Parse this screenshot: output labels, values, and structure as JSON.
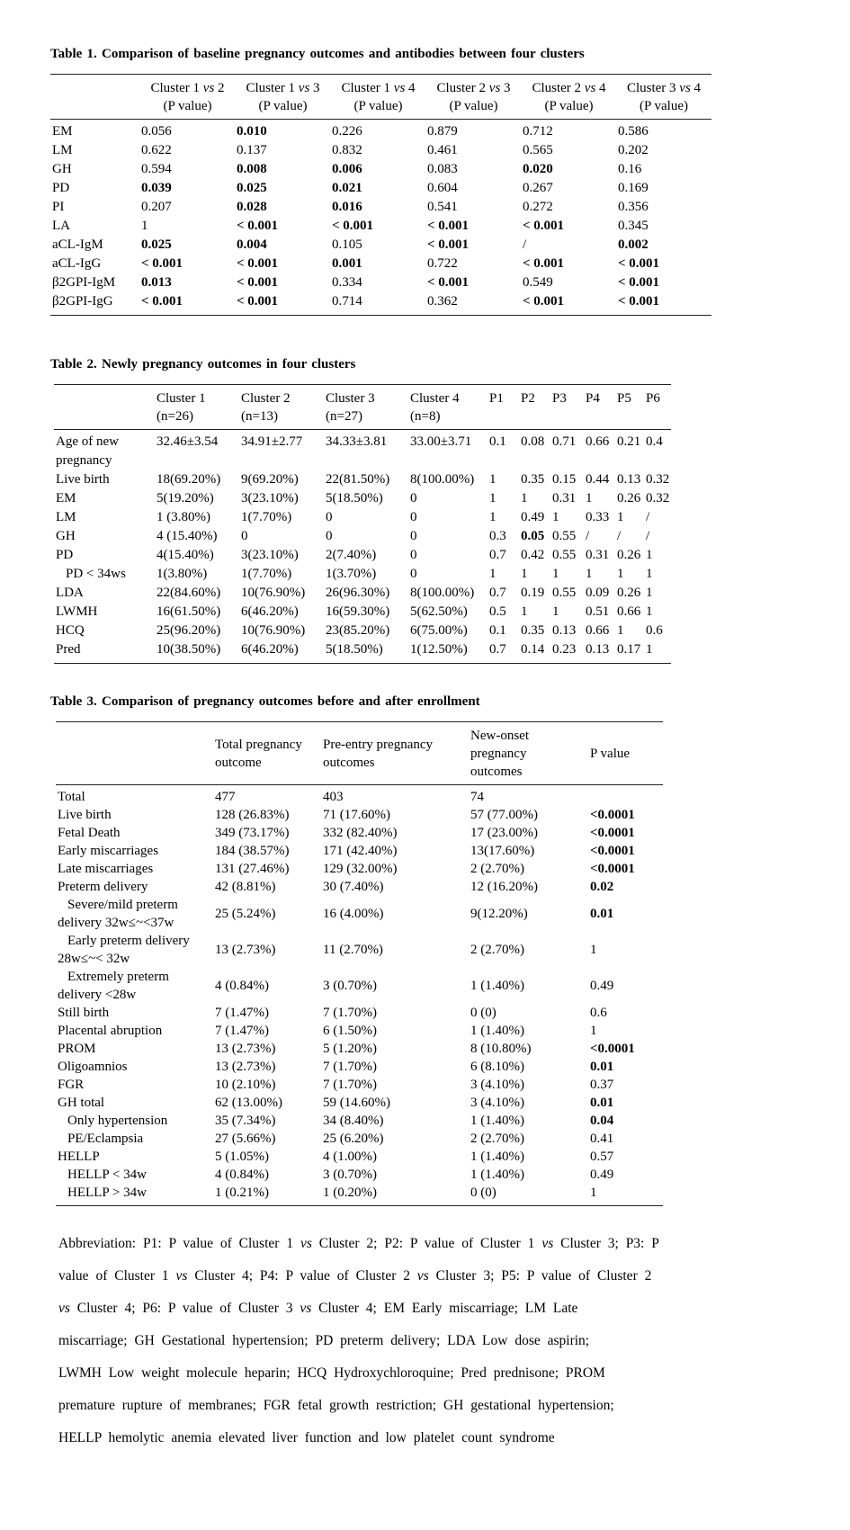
{
  "colors": {
    "background": "#ffffff",
    "text": "#000000",
    "rule": "#222222"
  },
  "table1": {
    "title": "Table 1. Comparison of baseline pregnancy outcomes and antibodies between four clusters",
    "widths": [
      100,
      106,
      106,
      106,
      106,
      106,
      105
    ],
    "headers": [
      [
        ""
      ],
      [
        "Cluster 1 vs 2",
        "(P value)"
      ],
      [
        "Cluster 1 vs 3",
        "(P value)"
      ],
      [
        "Cluster 1 vs 4",
        "(P value)"
      ],
      [
        "Cluster 2 vs 3",
        "(P value)"
      ],
      [
        "Cluster 2 vs 4",
        "(P value)"
      ],
      [
        "Cluster 3 vs 4",
        "(P value)"
      ]
    ],
    "rows": [
      {
        "label": "EM",
        "cells": [
          "0.056",
          {
            "t": "0.010",
            "b": true
          },
          "0.226",
          "0.879",
          "0.712",
          "0.586"
        ]
      },
      {
        "label": "LM",
        "cells": [
          "0.622",
          "0.137",
          "0.832",
          "0.461",
          "0.565",
          "0.202"
        ]
      },
      {
        "label": "GH",
        "cells": [
          "0.594",
          {
            "t": "0.008",
            "b": true
          },
          {
            "t": "0.006",
            "b": true
          },
          "0.083",
          {
            "t": "0.020",
            "b": true
          },
          "0.16"
        ]
      },
      {
        "label": "PD",
        "cells": [
          {
            "t": "0.039",
            "b": true
          },
          {
            "t": "0.025",
            "b": true
          },
          {
            "t": "0.021",
            "b": true
          },
          "0.604",
          "0.267",
          "0.169"
        ]
      },
      {
        "label": "PI",
        "cells": [
          "0.207",
          {
            "t": "0.028",
            "b": true
          },
          {
            "t": "0.016",
            "b": true
          },
          "0.541",
          "0.272",
          "0.356"
        ]
      },
      {
        "label": "LA",
        "cells": [
          "1",
          {
            "t": "< 0.001",
            "b": true
          },
          {
            "t": "< 0.001",
            "b": true
          },
          {
            "t": "< 0.001",
            "b": true
          },
          {
            "t": "< 0.001",
            "b": true
          },
          "0.345"
        ]
      },
      {
        "label": "aCL-IgM",
        "cells": [
          {
            "t": "0.025",
            "b": true
          },
          {
            "t": "0.004",
            "b": true
          },
          "0.105",
          {
            "t": "< 0.001",
            "b": true
          },
          "/",
          {
            "t": "0.002",
            "b": true
          }
        ]
      },
      {
        "label": "aCL-IgG",
        "cells": [
          {
            "t": "< 0.001",
            "b": true
          },
          {
            "t": "< 0.001",
            "b": true
          },
          {
            "t": "0.001",
            "b": true
          },
          "0.722",
          {
            "t": "< 0.001",
            "b": true
          },
          {
            "t": "< 0.001",
            "b": true
          }
        ]
      },
      {
        "label": "β2GPI-IgM",
        "cells": [
          {
            "t": "0.013",
            "b": true
          },
          {
            "t": "< 0.001",
            "b": true
          },
          "0.334",
          {
            "t": "< 0.001",
            "b": true
          },
          "0.549",
          {
            "t": "< 0.001",
            "b": true
          }
        ]
      },
      {
        "label": "β2GPI-IgG",
        "cells": [
          {
            "t": "< 0.001",
            "b": true
          },
          {
            "t": "< 0.001",
            "b": true
          },
          "0.714",
          "0.362",
          {
            "t": "< 0.001",
            "b": true
          },
          {
            "t": "< 0.001",
            "b": true
          }
        ]
      }
    ]
  },
  "table2": {
    "title": "Table 2. Newly pregnancy outcomes in four clusters",
    "widths": [
      113,
      94,
      94,
      94,
      88,
      35,
      35,
      37,
      35,
      32,
      29
    ],
    "headers": [
      [
        ""
      ],
      [
        "Cluster 1",
        "(n=26)"
      ],
      [
        "Cluster 2",
        "(n=13)"
      ],
      [
        "Cluster 3",
        "(n=27)"
      ],
      [
        "Cluster 4",
        "(n=8)"
      ],
      [
        "P1"
      ],
      [
        "P2"
      ],
      [
        "P3"
      ],
      [
        "P4"
      ],
      [
        "P5"
      ],
      [
        "P6"
      ]
    ],
    "rows": [
      {
        "label": "Age of new pregnancy",
        "cells": [
          "32.46±3.54",
          "34.91±2.77",
          "34.33±3.81",
          "33.00±3.71",
          "0.1",
          "0.08",
          "0.71",
          "0.66",
          "0.21",
          "0.4"
        ]
      },
      {
        "label": "Live birth",
        "cells": [
          "18(69.20%)",
          "9(69.20%)",
          "22(81.50%)",
          "8(100.00%)",
          "1",
          "0.35",
          "0.15",
          "0.44",
          "0.13",
          "0.32"
        ]
      },
      {
        "label": "EM",
        "cells": [
          "5(19.20%)",
          "3(23.10%)",
          "5(18.50%)",
          "0",
          "1",
          "1",
          "0.31",
          "1",
          "0.26",
          "0.32"
        ]
      },
      {
        "label": "LM",
        "cells": [
          "1 (3.80%)",
          "1(7.70%)",
          "0",
          "0",
          "1",
          "0.49",
          "1",
          "0.33",
          "1",
          "/"
        ]
      },
      {
        "label": "GH",
        "cells": [
          "4 (15.40%)",
          "0",
          "0",
          "0",
          "0.3",
          {
            "t": "0.05",
            "b": true
          },
          "0.55",
          "/",
          "/",
          "/"
        ]
      },
      {
        "label": "PD",
        "cells": [
          "4(15.40%)",
          "3(23.10%)",
          "2(7.40%)",
          "0",
          "0.7",
          "0.42",
          "0.55",
          "0.31",
          "0.26",
          "1"
        ]
      },
      {
        "label": "PD < 34ws",
        "indent": true,
        "cells": [
          "1(3.80%)",
          "1(7.70%)",
          "1(3.70%)",
          "0",
          "1",
          "1",
          "1",
          "1",
          "1",
          "1"
        ]
      },
      {
        "label": "LDA",
        "cells": [
          "22(84.60%)",
          "10(76.90%)",
          "26(96.30%)",
          "8(100.00%)",
          "0.7",
          "0.19",
          "0.55",
          "0.09",
          "0.26",
          "1"
        ]
      },
      {
        "label": "LWMH",
        "cells": [
          "16(61.50%)",
          "6(46.20%)",
          "16(59.30%)",
          "5(62.50%)",
          "0.5",
          "1",
          "1",
          "0.51",
          "0.66",
          "1"
        ]
      },
      {
        "label": "HCQ",
        "cells": [
          "25(96.20%)",
          "10(76.90%)",
          "23(85.20%)",
          "6(75.00%)",
          "0.1",
          "0.35",
          "0.13",
          "0.66",
          "1",
          "0.6"
        ]
      },
      {
        "label": "Pred",
        "cells": [
          "10(38.50%)",
          "6(46.20%)",
          "5(18.50%)",
          "1(12.50%)",
          "0.7",
          "0.14",
          "0.23",
          "0.13",
          "0.17",
          "1"
        ]
      }
    ]
  },
  "table3": {
    "title": "Table 3. Comparison of pregnancy outcomes before and after enrollment",
    "widths": [
      176,
      120,
      164,
      133,
      82
    ],
    "headers": [
      [
        ""
      ],
      [
        "Total pregnancy",
        "outcome"
      ],
      [
        "Pre-entry pregnancy",
        "outcomes"
      ],
      [
        "New-onset pregnancy",
        "outcomes"
      ],
      [
        "P value"
      ]
    ],
    "rows": [
      {
        "label": "Total",
        "cells": [
          "477",
          "403",
          "74",
          ""
        ]
      },
      {
        "label": "Live birth",
        "cells": [
          "128 (26.83%)",
          "71 (17.60%)",
          "57 (77.00%)",
          {
            "t": "<0.0001",
            "b": true
          }
        ]
      },
      {
        "label": "Fetal Death",
        "cells": [
          "349 (73.17%)",
          "332 (82.40%)",
          "17 (23.00%)",
          {
            "t": "<0.0001",
            "b": true
          }
        ]
      },
      {
        "label": "Early miscarriages",
        "cells": [
          "184 (38.57%)",
          "171 (42.40%)",
          "13(17.60%)",
          {
            "t": "<0.0001",
            "b": true
          }
        ]
      },
      {
        "label": "Late miscarriages",
        "cells": [
          "131 (27.46%)",
          "129 (32.00%)",
          "2 (2.70%)",
          {
            "t": "<0.0001",
            "b": true
          }
        ]
      },
      {
        "label": "Preterm delivery",
        "cells": [
          "42 (8.81%)",
          "30 (7.40%)",
          "12 (16.20%)",
          {
            "t": "0.02",
            "b": true
          }
        ]
      },
      {
        "label": "Severe/mild preterm delivery 32w≤~<37w",
        "indent": true,
        "cells": [
          "25 (5.24%)",
          "16 (4.00%)",
          "9(12.20%)",
          {
            "t": "0.01",
            "b": true
          }
        ]
      },
      {
        "label": "Early preterm delivery 28w≤~< 32w",
        "indent": true,
        "cells": [
          "13 (2.73%)",
          "11 (2.70%)",
          "2 (2.70%)",
          "1"
        ]
      },
      {
        "label": "Extremely preterm delivery <28w",
        "indent": true,
        "cells": [
          "4 (0.84%)",
          "3 (0.70%)",
          "1 (1.40%)",
          "0.49"
        ]
      },
      {
        "label": "Still birth",
        "cells": [
          "7 (1.47%)",
          "7 (1.70%)",
          "0 (0)",
          "0.6"
        ]
      },
      {
        "label": "Placental abruption",
        "cells": [
          "7 (1.47%)",
          "6 (1.50%)",
          "1 (1.40%)",
          "1"
        ]
      },
      {
        "label": "PROM",
        "cells": [
          "13 (2.73%)",
          "5 (1.20%)",
          "8 (10.80%)",
          {
            "t": "<0.0001",
            "b": true
          }
        ]
      },
      {
        "label": "Oligoamnios",
        "cells": [
          "13 (2.73%)",
          "7 (1.70%)",
          "6 (8.10%)",
          {
            "t": "0.01",
            "b": true
          }
        ]
      },
      {
        "label": "FGR",
        "cells": [
          "10 (2.10%)",
          "7 (1.70%)",
          "3 (4.10%)",
          "0.37"
        ]
      },
      {
        "label": "GH total",
        "cells": [
          "62 (13.00%)",
          "59 (14.60%)",
          "3 (4.10%)",
          {
            "t": "0.01",
            "b": true
          }
        ]
      },
      {
        "label": "Only hypertension",
        "indent": true,
        "cells": [
          "35 (7.34%)",
          "34 (8.40%)",
          "1 (1.40%)",
          {
            "t": "0.04",
            "b": true
          }
        ]
      },
      {
        "label": "PE/Eclampsia",
        "indent": true,
        "cells": [
          "27 (5.66%)",
          "25 (6.20%)",
          "2 (2.70%)",
          "0.41"
        ]
      },
      {
        "label": "HELLP",
        "cells": [
          "5 (1.05%)",
          "4 (1.00%)",
          "1 (1.40%)",
          "0.57"
        ]
      },
      {
        "label": "HELLP < 34w",
        "indent": true,
        "cells": [
          "4 (0.84%)",
          "3 (0.70%)",
          "1 (1.40%)",
          "0.49"
        ]
      },
      {
        "label": "HELLP > 34w",
        "indent": true,
        "cells": [
          "1 (0.21%)",
          "1 (0.20%)",
          "0 (0)",
          "1"
        ]
      }
    ]
  },
  "abbreviation": {
    "lines": [
      "Abbreviation: P1: P value of Cluster 1 vs Cluster 2; P2: P value of Cluster 1 vs Cluster 3; P3: P",
      "value of Cluster 1 vs Cluster 4; P4: P value of Cluster 2 vs Cluster 3; P5: P value of Cluster 2",
      "vs Cluster 4; P6: P value of Cluster 3 vs Cluster 4; EM Early miscarriage; LM Late",
      "miscarriage; GH Gestational hypertension; PD preterm delivery; LDA Low dose aspirin;",
      "LWMH Low weight molecule heparin; HCQ Hydroxychloroquine; Pred prednisone; PROM",
      "premature rupture of membranes; FGR fetal growth restriction; GH gestational hypertension;",
      "HELLP hemolytic anemia elevated liver function and low platelet count syndrome"
    ]
  }
}
